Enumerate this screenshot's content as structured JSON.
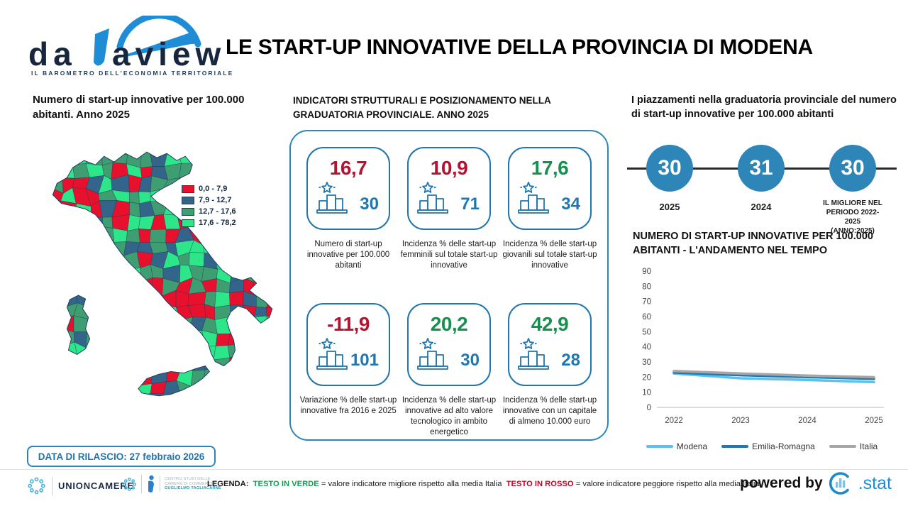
{
  "header": {
    "logo_text": "dataview",
    "logo_tagline": "IL BAROMETRO DELL'ECONOMIA TERRITORIALE",
    "title": "LE START-UP INNOVATIVE DELLA PROVINCIA DI MODENA"
  },
  "map_section": {
    "release_label": "DATA DI RILASCIO: 27 febbraio 2026"
  },
  "indicators": {
    "heading": "INDICATORI STRUTTURALI E POSIZIONAMENTO NELLA GRADUATORIA PROVINCIALE. ANNO 2025",
    "cards": [
      {
        "value": "16,7",
        "value_color": "#b5122f",
        "rank": "30",
        "caption": "Numero di start-up innovative per 100.000 abitanti"
      },
      {
        "value": "10,9",
        "value_color": "#b5122f",
        "rank": "71",
        "caption": "Incidenza % delle start-up femminili sul totale start-up innovative"
      },
      {
        "value": "17,6",
        "value_color": "#16914d",
        "rank": "34",
        "caption": "Incidenza % delle start-up giovanili sul totale start-up innovative"
      },
      {
        "value": "-11,9",
        "value_color": "#b5122f",
        "rank": "101",
        "caption": "Variazione % delle start-up innovative fra 2016 e 2025"
      },
      {
        "value": "20,2",
        "value_color": "#16914d",
        "rank": "30",
        "caption": "Incidenza % delle start-up innovative ad alto valore tecnologico in ambito energetico"
      },
      {
        "value": "42,9",
        "value_color": "#16914d",
        "rank": "28",
        "caption": "Incidenza % delle start-up innovative con un capitale di almeno 10.000 euro"
      }
    ]
  },
  "ranking": {
    "heading": "I piazzamenti nella graduatoria provinciale del numero di start-up innovative per 100.000 abitanti",
    "accent_color": "#2e86b8",
    "milestones": [
      {
        "value": "30",
        "label": "2025"
      },
      {
        "value": "31",
        "label": "2024"
      },
      {
        "value": "30",
        "label": "IL MIGLIORE NEL PERIODO 2022-2025 (ANNO:2025)"
      }
    ]
  },
  "chart_data": [
    {
      "type": "line",
      "title": "NUMERO DI START-UP INNOVATIVE PER 100.000 ABITANTI - L'ANDAMENTO NEL TEMPO",
      "x": [
        "2022",
        "2023",
        "2024",
        "2025"
      ],
      "series": [
        {
          "name": "Modena",
          "color": "#5bc2ee",
          "values": [
            22.4,
            19.2,
            18.1,
            16.7
          ]
        },
        {
          "name": "Emilia-Romagna",
          "color": "#1f78b4",
          "values": [
            23.0,
            21.3,
            20.0,
            18.9
          ]
        },
        {
          "name": "Italia",
          "color": "#a6a6a6",
          "values": [
            24.0,
            22.4,
            21.0,
            19.9
          ]
        }
      ],
      "ylim": [
        0,
        90
      ],
      "yticks": [
        0,
        10,
        20,
        30,
        40,
        50,
        60,
        70,
        80,
        90
      ],
      "legend_position": "bottom",
      "grid": false
    },
    {
      "type": "choropleth-map",
      "title": "Numero di start-up innovative per 100.000 abitanti. Anno 2025",
      "region": "Italia - province",
      "classes": [
        {
          "label": "0,0 - 7,9",
          "color": "#e8112d"
        },
        {
          "label": "7,9 - 12,7",
          "color": "#33658a"
        },
        {
          "label": "12,7 - 17,6",
          "color": "#3f9e71"
        },
        {
          "label": "17,6 - 78,2",
          "color": "#2ee68a"
        }
      ]
    }
  ],
  "footer": {
    "unioncamere_label": "UNIONCAMERE",
    "centro_studi_lines": [
      "CENTRO STUDI DELLE",
      "CAMERE DI COMMERCIO",
      "GUGLIELMO TAGLIACARNE"
    ],
    "legenda_label": "LEGENDA:",
    "green_term": "TESTO IN VERDE",
    "green_desc": "= valore indicatore migliore rispetto alla media Italia",
    "red_term": "TESTO IN ROSSO",
    "red_desc": "= valore indicatore peggiore rispetto alla media Italia",
    "powered_by": "powered by",
    "stat_label": ".stat"
  },
  "icons": {
    "gauge-arc-icon": "speedometer arc with needle (logo)",
    "star-badge-icon": "outlined star with sparkle dashes",
    "podium-icon": "three-step ranking podium",
    "emblem-ring-icon": "unioncamere circular swirl emblem",
    "person-figure-icon": "tagliacarne abstract blue figure",
    "cstat-ring-icon": "open C ring with bar chart"
  }
}
